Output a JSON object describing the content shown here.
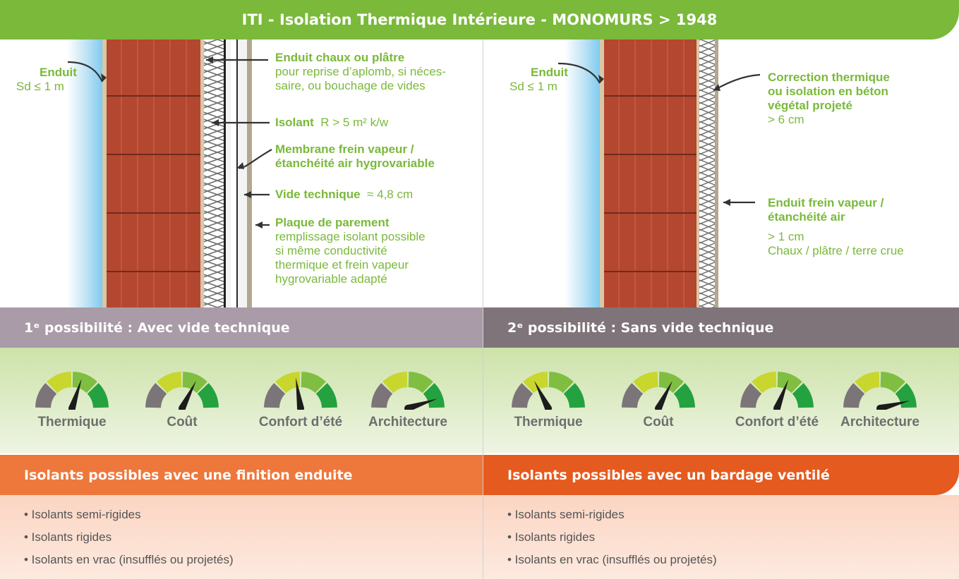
{
  "title": "ITI - Isolation Thermique Intérieure - MONOMURS > 1948",
  "left": {
    "enduit_name": "Enduit",
    "enduit_sd": "Sd ≤ 1 m",
    "callouts": [
      {
        "title": "Enduit chaux ou plâtre",
        "lines": [
          "pour reprise d’aplomb, si néces-",
          "saire, ou bouchage de vides"
        ]
      },
      {
        "title": "Isolant",
        "value": "R > 5 m² k/w"
      },
      {
        "title": "Membrane frein vapeur /",
        "title2": "étanchéité air hygrovariable"
      },
      {
        "title": "Vide technique",
        "value": "≈ 4,8 cm"
      },
      {
        "title": "Plaque de parement",
        "lines": [
          "remplissage isolant possible",
          "si même conductivité",
          "thermique et frein vapeur",
          "hygrovariable adapté"
        ]
      }
    ],
    "band_title": "1ᵉ possibilité : Avec vide technique",
    "gauges": [
      {
        "label": "Thermique",
        "level": 0.6
      },
      {
        "label": "Coût",
        "level": 0.65
      },
      {
        "label": "Confort d’été",
        "level": 0.45
      },
      {
        "label": "Architecture",
        "level": 0.9
      }
    ],
    "list_title": "Isolants possibles avec une finition enduite",
    "list_items": [
      "• Isolants semi-rigides",
      "• Isolants rigides",
      "• Isolants en vrac (insufflés ou projetés)"
    ]
  },
  "right": {
    "enduit_name": "Enduit",
    "enduit_sd": "Sd ≤ 1 m",
    "callouts": [
      {
        "title_lines": [
          "Correction thermique",
          "ou isolation en béton",
          "végétal projeté"
        ],
        "lines": [
          "> 6 cm"
        ]
      },
      {
        "title_lines": [
          "Enduit frein vapeur /",
          "étanchéité air"
        ],
        "lines": [
          "> 1 cm",
          "Chaux / plâtre / terre crue"
        ]
      }
    ],
    "band_title": "2ᵉ possibilité : Sans vide technique",
    "gauges": [
      {
        "label": "Thermique",
        "level": 0.35
      },
      {
        "label": "Coût",
        "level": 0.65
      },
      {
        "label": "Confort d’été",
        "level": 0.62
      },
      {
        "label": "Architecture",
        "level": 0.92
      }
    ],
    "list_title": "Isolants possibles avec un bardage ventilé",
    "list_items": [
      "• Isolants semi-rigides",
      "• Isolants rigides",
      "• Isolants en vrac (insufflés ou projetés)"
    ]
  },
  "colors": {
    "title_green": "#7ab93a",
    "band_left": "#a99ba7",
    "band_right": "#7f7479",
    "orange_left": "#ee773b",
    "orange_right": "#e55a1e",
    "brick": "#b4472f",
    "gauge_grey": "#7b7579",
    "gauge_yellow": "#c8d62e",
    "gauge_lightgreen": "#7fbe41",
    "gauge_green": "#24a23f"
  }
}
